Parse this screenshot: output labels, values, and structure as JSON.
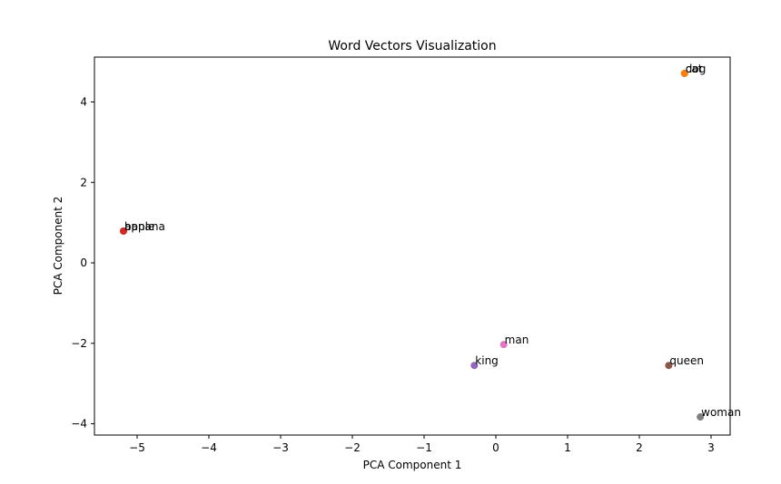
{
  "chart_data": {
    "type": "scatter",
    "title": "Word Vectors Visualization",
    "x_label": "PCA Component 1",
    "y_label": "PCA Component 2",
    "points": [
      {
        "label": "cat",
        "color": "#1f77b4",
        "x": 2.63,
        "y": 4.71
      },
      {
        "label": "dog",
        "color": "#ff7f0e",
        "x": 2.63,
        "y": 4.71
      },
      {
        "label": "apple",
        "color": "#2ca02c",
        "x": -5.19,
        "y": 0.79
      },
      {
        "label": "banana",
        "color": "#d62728",
        "x": -5.19,
        "y": 0.79
      },
      {
        "label": "king",
        "color": "#9467bd",
        "x": -0.3,
        "y": -2.55
      },
      {
        "label": "queen",
        "color": "#8c564b",
        "x": 2.41,
        "y": -2.55
      },
      {
        "label": "man",
        "color": "#e377c2",
        "x": 0.11,
        "y": -2.03
      },
      {
        "label": "woman",
        "color": "#7f7f7f",
        "x": 2.85,
        "y": -3.83
      }
    ],
    "xlim": [
      -5.595,
      3.266
    ],
    "xticks": [
      {
        "value": -5,
        "label": "−5"
      },
      {
        "value": -4,
        "label": "−4"
      },
      {
        "value": -3,
        "label": "−3"
      },
      {
        "value": -2,
        "label": "−2"
      },
      {
        "value": -1,
        "label": "−1"
      },
      0,
      1,
      2,
      3
    ],
    "ylim": [
      -4.28,
      5.115
    ],
    "yticks": [
      {
        "value": -4,
        "label": "−4"
      },
      {
        "value": -2,
        "label": "−2"
      },
      0,
      2,
      4
    ]
  }
}
